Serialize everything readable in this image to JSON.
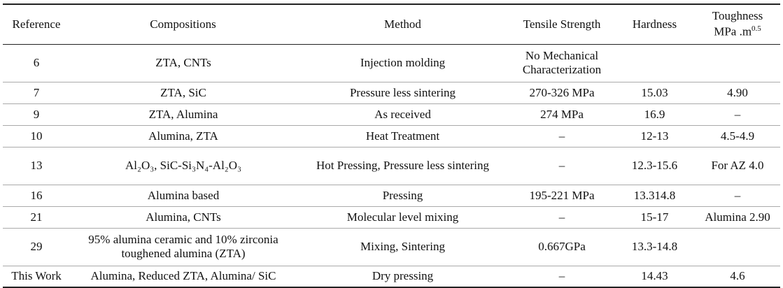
{
  "table": {
    "header": [
      "Reference",
      "Compositions",
      "Method",
      "Tensile Strength",
      "Hardness",
      {
        "text": "Toughness MPa .m",
        "sup": "0.5"
      }
    ],
    "rows": [
      [
        "6",
        "ZTA, CNTs",
        "Injection molding",
        "No Mechanical Characterization",
        null,
        null
      ],
      [
        "7",
        "ZTA, SiC",
        "Pressure less sintering",
        "270-326 MPa",
        "15.03",
        "4.90"
      ],
      [
        "9",
        "ZTA, Alumina",
        "As received",
        "274 MPa",
        "16.9",
        "–"
      ],
      [
        "10",
        "Alumina, ZTA",
        "Heat Treatment",
        "–",
        "12-13",
        "4.5-4.9"
      ],
      [
        "13",
        "Al₂O₃, SiC-Si₃N₄-Al₂O₃",
        "Hot Pressing, Pressure less sintering",
        "–",
        "12.3-15.6",
        "For AZ 4.0"
      ],
      [
        "16",
        "Alumina based",
        "Pressing",
        "195-221 MPa",
        "13.314.8",
        "–"
      ],
      [
        "21",
        "Alumina, CNTs",
        "Molecular level mixing",
        "–",
        "15-17",
        "Alumina 2.90"
      ],
      [
        "29",
        "95% alumina ceramic and 10% zirconia toughened alumina (ZTA)",
        "Mixing, Sintering",
        "0.667GPa",
        "13.3-14.8",
        null
      ],
      [
        "This Work",
        "Alumina, Reduced ZTA, Alumina/ SiC",
        "Dry pressing",
        "–",
        "14.43",
        "4.6"
      ]
    ]
  }
}
